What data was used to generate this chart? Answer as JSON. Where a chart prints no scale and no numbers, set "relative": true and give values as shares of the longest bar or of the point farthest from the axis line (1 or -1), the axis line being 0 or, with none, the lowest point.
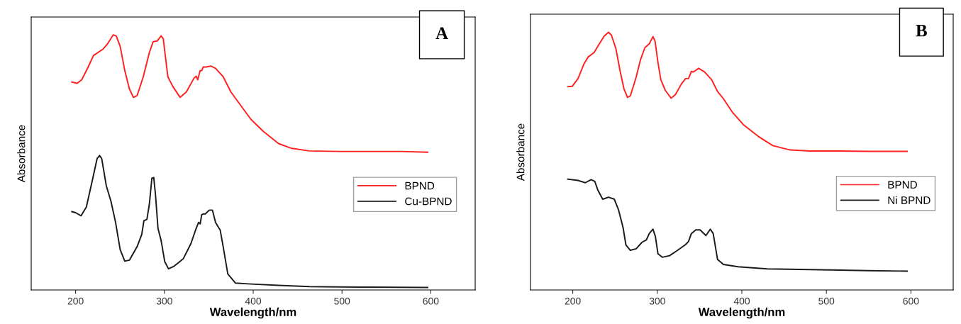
{
  "chart_data": [
    {
      "type": "line",
      "xlabel": "Wavelength/nm",
      "ylabel": "Absorbance",
      "relative": true,
      "xlim": [
        150,
        650
      ],
      "xticks": [
        200,
        300,
        400,
        500,
        600
      ],
      "tick_labels": "x",
      "grid": false,
      "legend": "right",
      "marker": "none",
      "line_style": "solid",
      "annotations": [
        "A"
      ],
      "series": [
        {
          "name": "BPND",
          "color": "#ff2020",
          "x": [
            195.8,
            201.7,
            206.9,
            213.9,
            220.1,
            231.2,
            236.4,
            242.3,
            245.7,
            250.2,
            255.4,
            260.6,
            265.1,
            269.3,
            276.2,
            283.1,
            287.3,
            291.8,
            296.3,
            298.7,
            303.9,
            309.1,
            317.7,
            324.7,
            333.3,
            335.8,
            337.5,
            340.3,
            342.0,
            343.7,
            347.2,
            352.4,
            357.6,
            366.2,
            374.9,
            383.5,
            397.4,
            411.3,
            428.6,
            442.4,
            463.2,
            497.8,
            532.5,
            567.1,
            596.5
          ],
          "values": [
            0.815,
            0.81,
            0.824,
            0.872,
            0.919,
            0.945,
            0.967,
            1.0,
            0.996,
            0.955,
            0.86,
            0.788,
            0.755,
            0.762,
            0.836,
            0.931,
            0.973,
            0.976,
            0.996,
            0.985,
            0.836,
            0.8,
            0.755,
            0.776,
            0.83,
            0.838,
            0.824,
            0.86,
            0.86,
            0.874,
            0.874,
            0.878,
            0.869,
            0.836,
            0.776,
            0.735,
            0.669,
            0.622,
            0.574,
            0.556,
            0.545,
            0.543,
            0.543,
            0.543,
            0.54
          ]
        },
        {
          "name": "Cu-BPND",
          "color": "#1a1a1a",
          "x": [
            195.8,
            200.0,
            206.2,
            212.1,
            219.0,
            224.2,
            227.0,
            229.4,
            234.6,
            239.8,
            245.0,
            250.2,
            255.4,
            260.6,
            269.3,
            274.5,
            276.9,
            280.3,
            283.1,
            285.9,
            288.0,
            290.0,
            292.8,
            296.3,
            300.4,
            304.6,
            310.8,
            321.2,
            329.9,
            335.1,
            338.5,
            340.3,
            342.0,
            343.7,
            346.1,
            350.6,
            354.1,
            357.6,
            362.8,
            366.2,
            371.4,
            380.1,
            393.9,
            428.6,
            463.2,
            497.8,
            532.5,
            596.5
          ],
          "values": [
            0.307,
            0.303,
            0.291,
            0.325,
            0.432,
            0.515,
            0.527,
            0.515,
            0.408,
            0.348,
            0.265,
            0.158,
            0.113,
            0.117,
            0.17,
            0.218,
            0.271,
            0.277,
            0.337,
            0.438,
            0.441,
            0.372,
            0.241,
            0.194,
            0.111,
            0.083,
            0.093,
            0.122,
            0.182,
            0.235,
            0.265,
            0.259,
            0.295,
            0.298,
            0.298,
            0.313,
            0.313,
            0.265,
            0.235,
            0.17,
            0.063,
            0.027,
            0.024,
            0.018,
            0.013,
            0.012,
            0.011,
            0.01
          ]
        }
      ]
    },
    {
      "type": "line",
      "xlabel": "Wavelength/nm",
      "ylabel": "Absorbance",
      "relative": true,
      "xlim": [
        150,
        650
      ],
      "xticks": [
        200,
        300,
        400,
        500,
        600
      ],
      "tick_labels": "x",
      "grid": false,
      "legend": "right",
      "marker": "none",
      "line_style": "solid",
      "annotations": [
        "B"
      ],
      "series": [
        {
          "name": "BPND",
          "color": "#ff2020",
          "x": [
            194.2,
            199.3,
            206.2,
            213.1,
            218.2,
            225.1,
            230.3,
            237.1,
            242.3,
            245.7,
            250.9,
            256.1,
            260.5,
            264.7,
            268.1,
            275.0,
            280.1,
            285.3,
            290.5,
            294.9,
            297.3,
            300.8,
            304.2,
            309.4,
            316.3,
            321.4,
            328.3,
            333.4,
            336.9,
            340.3,
            342.7,
            348.9,
            355.8,
            364.4,
            371.3,
            378.2,
            388.5,
            402.2,
            419.4,
            436.6,
            457.3,
            481.3,
            515.7,
            550.1,
            595.5
          ],
          "values": [
            0.789,
            0.79,
            0.82,
            0.876,
            0.904,
            0.921,
            0.949,
            0.985,
            1.0,
            0.989,
            0.938,
            0.848,
            0.781,
            0.747,
            0.753,
            0.826,
            0.893,
            0.94,
            0.955,
            0.983,
            0.966,
            0.882,
            0.815,
            0.775,
            0.744,
            0.758,
            0.798,
            0.82,
            0.82,
            0.848,
            0.846,
            0.86,
            0.846,
            0.815,
            0.77,
            0.742,
            0.691,
            0.64,
            0.596,
            0.56,
            0.543,
            0.539,
            0.539,
            0.538,
            0.538
          ]
        },
        {
          "name": "Ni BPND",
          "color": "#1a1a1a",
          "x": [
            194.2,
            206.2,
            214.8,
            221.7,
            226.1,
            229.6,
            235.4,
            242.3,
            249.2,
            254.3,
            259.5,
            262.9,
            268.1,
            275.0,
            281.9,
            287.0,
            290.5,
            294.9,
            297.7,
            300.8,
            305.9,
            314.5,
            323.1,
            333.4,
            336.9,
            340.3,
            345.5,
            350.6,
            357.5,
            362.7,
            366.1,
            371.3,
            378.2,
            395.4,
            429.8,
            481.3,
            550.1,
            595.5
          ],
          "values": [
            0.43,
            0.425,
            0.416,
            0.428,
            0.421,
            0.388,
            0.352,
            0.36,
            0.352,
            0.309,
            0.242,
            0.174,
            0.154,
            0.16,
            0.185,
            0.194,
            0.219,
            0.236,
            0.208,
            0.14,
            0.127,
            0.133,
            0.152,
            0.176,
            0.188,
            0.219,
            0.233,
            0.233,
            0.211,
            0.236,
            0.219,
            0.118,
            0.099,
            0.09,
            0.082,
            0.079,
            0.075,
            0.073
          ]
        }
      ]
    }
  ]
}
